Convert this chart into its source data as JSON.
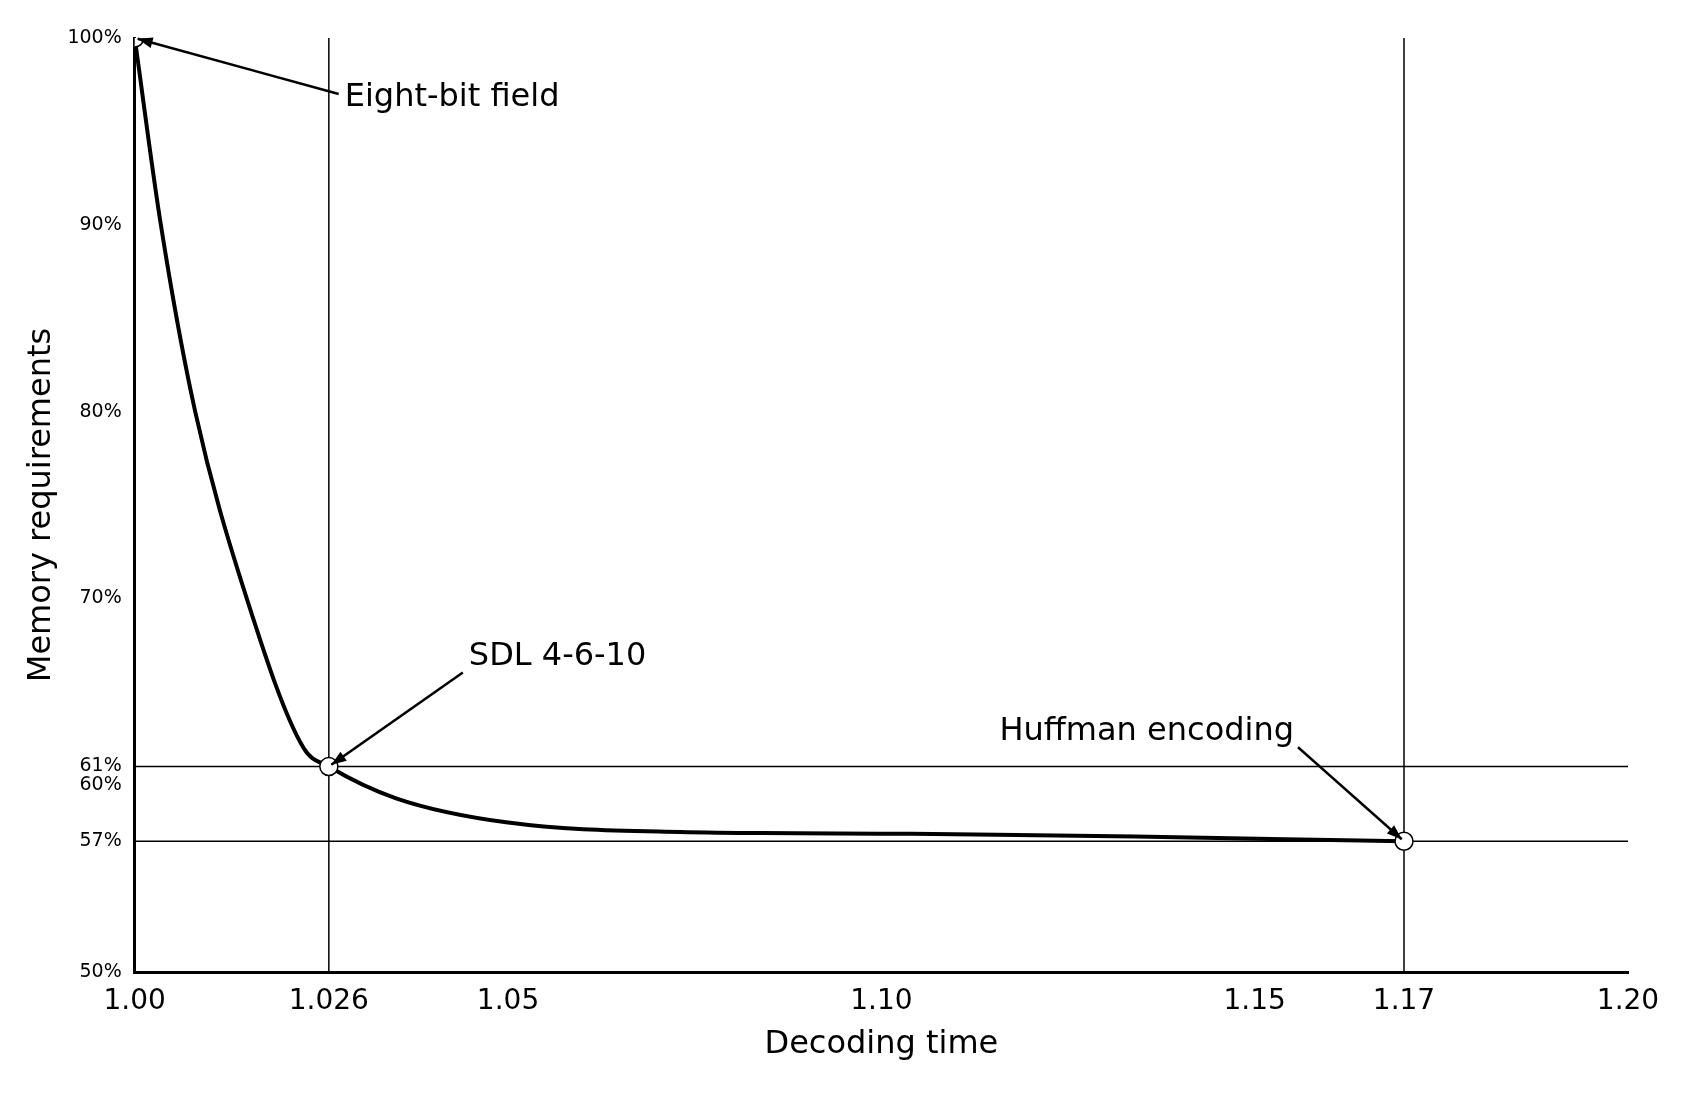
{
  "chart_data": {
    "type": "line",
    "xlabel": "Decoding time",
    "ylabel": "Memory requirements",
    "x": [
      1.0,
      1.0035,
      1.0081,
      1.015,
      1.0226,
      1.026,
      1.035,
      1.05,
      1.073,
      1.104,
      1.134,
      1.17
    ],
    "series": [
      {
        "color": "#000000",
        "values": [
          100,
          90,
          80,
          70,
          62,
          61,
          59.3,
          58,
          57.5,
          57.4,
          57.25,
          57
        ]
      },
      {
        "type": "scatter",
        "marker": "circle",
        "color": "#000000",
        "x": [
          1.0,
          1.026,
          1.17
        ],
        "values": [
          100,
          61,
          57
        ]
      }
    ],
    "xlim": [
      1.0,
      1.2
    ],
    "ylim": [
      50,
      100
    ],
    "xticks": [
      {
        "value": 1.0,
        "label": "1.00"
      },
      1.026,
      1.05,
      {
        "value": 1.1,
        "label": "1.10"
      },
      1.15,
      1.17,
      {
        "value": 1.2,
        "label": "1.20"
      }
    ],
    "yticks": [
      {
        "value": 50,
        "label": "50%"
      },
      {
        "value": 57,
        "label": "57%"
      },
      {
        "value": 60,
        "label": "60%"
      },
      {
        "value": 61,
        "label": "61%"
      },
      {
        "value": 70,
        "label": "70%"
      },
      {
        "value": 80,
        "label": "80%"
      },
      {
        "value": 90,
        "label": "90%"
      },
      {
        "value": 100,
        "label": "100%"
      }
    ],
    "ref_lines": [
      {
        "axis": "y",
        "value": 61
      },
      {
        "axis": "y",
        "value": 57
      },
      {
        "axis": "x",
        "value": 1.026
      },
      {
        "axis": "x",
        "value": 1.17
      }
    ],
    "annotations": [
      {
        "text": "Eight-bit field",
        "x": 1.0,
        "y": 100
      },
      {
        "text": "SDL 4-6-10",
        "x": 1.026,
        "y": 61
      },
      {
        "text": "Huffman encoding",
        "x": 1.17,
        "y": 57
      }
    ],
    "grid": false,
    "legend": false
  }
}
